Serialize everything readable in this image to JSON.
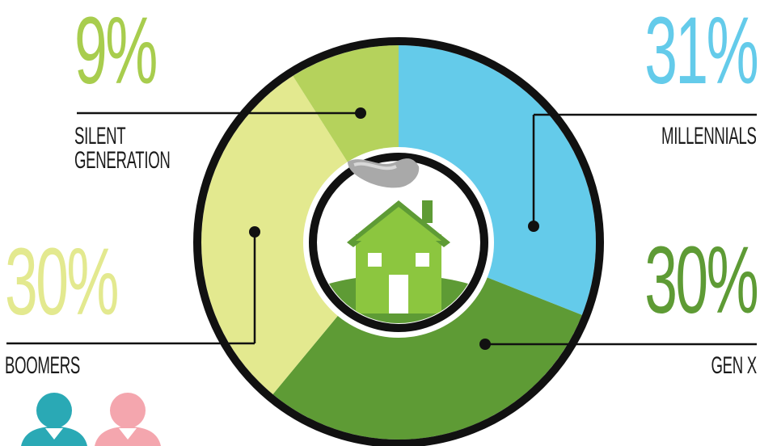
{
  "chart_data": {
    "type": "pie",
    "categories": [
      "Silent Generation",
      "Millennials",
      "Gen X",
      "Boomers"
    ],
    "values": [
      9,
      31,
      30,
      30
    ],
    "labels": {
      "silent": {
        "percent": "9%",
        "name": "SILENT\nGENERATION"
      },
      "millennials": {
        "percent": "31%",
        "name": "MILLENNIALS"
      },
      "genx": {
        "percent": "30%",
        "name": "GEN X"
      },
      "boomers": {
        "percent": "30%",
        "name": "BOOMERS"
      }
    },
    "colors": {
      "silent": "#b5d25c",
      "millennials": "#64cbea",
      "genx": "#5e9b35",
      "boomers": "#e3e98f"
    },
    "percent_text_colors": {
      "silent": "#a8cd4e",
      "millennials": "#64cbea",
      "genx": "#5e9b35",
      "boomers": "#e3e98f"
    }
  },
  "icons": [
    "house-icon",
    "smoke-icon",
    "person-icon-teal",
    "person-icon-pink"
  ],
  "icon_colors": {
    "house": "#8cc63f",
    "person_teal": "#2aa9b5",
    "person_pink": "#f4a6ae",
    "smoke": "#a9a9a9"
  }
}
